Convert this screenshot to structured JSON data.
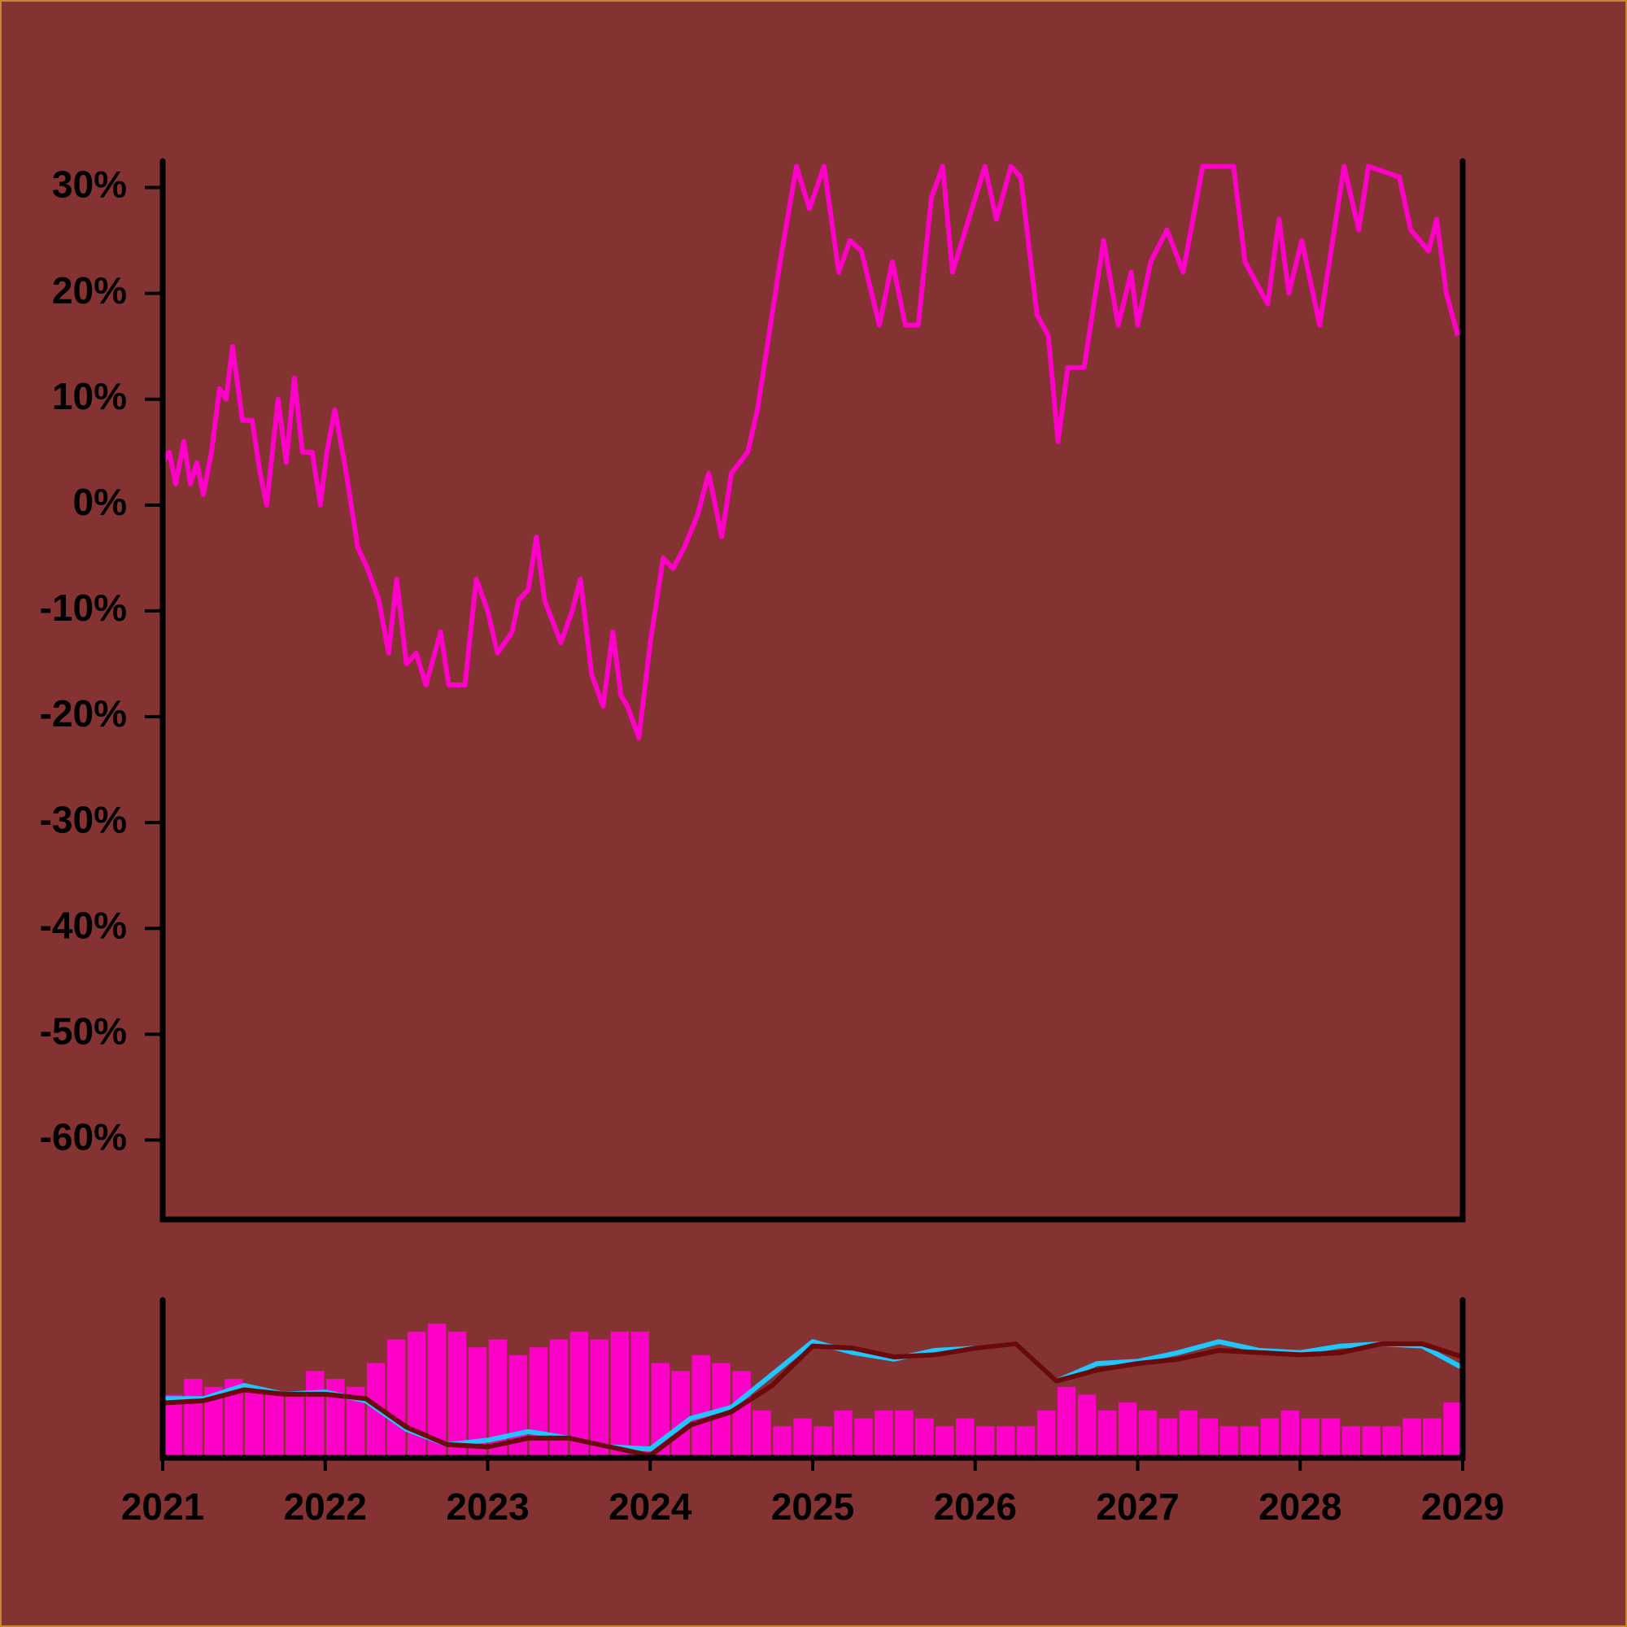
{
  "chart_data": [
    {
      "type": "line",
      "x": [
        2021.0,
        2021.04,
        2021.08,
        2021.13,
        2021.17,
        2021.21,
        2021.25,
        2021.3,
        2021.35,
        2021.39,
        2021.43,
        2021.49,
        2021.55,
        2021.6,
        2021.64,
        2021.71,
        2021.76,
        2021.81,
        2021.86,
        2021.92,
        2021.97,
        2022.01,
        2022.06,
        2022.13,
        2022.2,
        2022.26,
        2022.33,
        2022.39,
        2022.44,
        2022.5,
        2022.56,
        2022.62,
        2022.71,
        2022.76,
        2022.86,
        2022.93,
        2023.0,
        2023.06,
        2023.15,
        2023.19,
        2023.25,
        2023.3,
        2023.35,
        2023.45,
        2023.52,
        2023.57,
        2023.64,
        2023.71,
        2023.77,
        2023.82,
        2023.86,
        2023.93,
        2024.0,
        2024.08,
        2024.14,
        2024.21,
        2024.29,
        2024.36,
        2024.44,
        2024.5,
        2024.6,
        2024.66,
        2024.72,
        2024.8,
        2024.9,
        2024.98,
        2025.07,
        2025.16,
        2025.23,
        2025.3,
        2025.41,
        2025.49,
        2025.57,
        2025.65,
        2025.73,
        2025.8,
        2025.86,
        2025.94,
        2026.06,
        2026.13,
        2026.22,
        2026.28,
        2026.38,
        2026.45,
        2026.51,
        2026.57,
        2026.67,
        2026.79,
        2026.88,
        2026.96,
        2027.0,
        2027.08,
        2027.18,
        2027.28,
        2027.4,
        2027.59,
        2027.66,
        2027.8,
        2027.87,
        2027.93,
        2028.01,
        2028.12,
        2028.23,
        2028.27,
        2028.36,
        2028.42,
        2028.61,
        2028.68,
        2028.79,
        2028.84,
        2028.9,
        2028.97
      ],
      "values": [
        4,
        5,
        2,
        6,
        2,
        4,
        1,
        5,
        11,
        10,
        15,
        8,
        8,
        3,
        0,
        10,
        4,
        12,
        5,
        5,
        0,
        5,
        9,
        3,
        -4,
        -6,
        -9,
        -14,
        -7,
        -15,
        -14,
        -17,
        -12,
        -17,
        -17,
        -7,
        -10,
        -14,
        -12,
        -9,
        -8,
        -3,
        -9,
        -13,
        -10,
        -7,
        -16,
        -19,
        -12,
        -18,
        -19,
        -22,
        -13,
        -5,
        -6,
        -4,
        -1,
        3,
        -3,
        3,
        5,
        9,
        15,
        23,
        32,
        28,
        32,
        22,
        25,
        24,
        17,
        23,
        17,
        17,
        29,
        32,
        22,
        26,
        32,
        27,
        32,
        31,
        18,
        16,
        6,
        13,
        13,
        25,
        17,
        22,
        17,
        23,
        26,
        22,
        32,
        32,
        23,
        19,
        27,
        20,
        25,
        17,
        28,
        32,
        26,
        32,
        31,
        26,
        24,
        27,
        20,
        16
      ],
      "color": "#ff00c8",
      "xlim": [
        2021,
        2029
      ],
      "ylim": [
        -67.5,
        32.5
      ],
      "yticks": [
        {
          "value": -60,
          "label": "-60%"
        },
        {
          "value": -50,
          "label": "-50%"
        },
        {
          "value": -40,
          "label": "-40%"
        },
        {
          "value": -30,
          "label": "-30%"
        },
        {
          "value": -20,
          "label": "-20%"
        },
        {
          "value": -10,
          "label": "-10%"
        },
        {
          "value": 0,
          "label": "0%"
        },
        {
          "value": 10,
          "label": "10%"
        },
        {
          "value": 20,
          "label": "20%"
        },
        {
          "value": 30,
          "label": "30%"
        }
      ]
    },
    {
      "type": "bar",
      "x": [
        2021.0625,
        2021.1875,
        2021.3125,
        2021.4375,
        2021.5625,
        2021.6875,
        2021.8125,
        2021.9375,
        2022.0625,
        2022.1875,
        2022.3125,
        2022.4375,
        2022.5625,
        2022.6875,
        2022.8125,
        2022.9375,
        2023.0625,
        2023.1875,
        2023.3125,
        2023.4375,
        2023.5625,
        2023.6875,
        2023.8125,
        2023.9375,
        2024.0625,
        2024.1875,
        2024.3125,
        2024.4375,
        2024.5625,
        2024.6875,
        2024.8125,
        2024.9375,
        2025.0625,
        2025.1875,
        2025.3125,
        2025.4375,
        2025.5625,
        2025.6875,
        2025.8125,
        2025.9375,
        2026.0625,
        2026.1875,
        2026.3125,
        2026.4375,
        2026.5625,
        2026.6875,
        2026.8125,
        2026.9375,
        2027.0625,
        2027.1875,
        2027.3125,
        2027.4375,
        2027.5625,
        2027.6875,
        2027.8125,
        2027.9375,
        2028.0625,
        2028.1875,
        2028.3125,
        2028.4375,
        2028.5625,
        2028.6875,
        2028.8125,
        2028.9375
      ],
      "values": [
        40,
        50,
        45,
        50,
        45,
        40,
        40,
        55,
        50,
        45,
        60,
        75,
        80,
        85,
        80,
        70,
        75,
        65,
        70,
        75,
        80,
        75,
        80,
        80,
        60,
        55,
        65,
        60,
        55,
        30,
        20,
        25,
        20,
        30,
        25,
        30,
        30,
        25,
        20,
        25,
        20,
        20,
        20,
        30,
        45,
        40,
        30,
        35,
        30,
        25,
        30,
        25,
        20,
        20,
        25,
        30,
        25,
        25,
        20,
        20,
        20,
        25,
        25,
        35
      ],
      "color": "#ff00c8",
      "xlim": [
        2021,
        2029
      ],
      "ylim": [
        0,
        100
      ],
      "xticks": [
        2021,
        2022,
        2023,
        2024,
        2025,
        2026,
        2027,
        2028,
        2029
      ],
      "y2lim": [
        -23,
        49
      ],
      "lines": [
        {
          "color": "#1ec8ff",
          "axis": "y2",
          "x": [
            2021,
            2021.25,
            2021.5,
            2021.75,
            2022,
            2022.25,
            2022.5,
            2022.75,
            2023,
            2023.25,
            2023.5,
            2023.75,
            2024,
            2024.25,
            2024.5,
            2024.75,
            2025,
            2025.25,
            2025.5,
            2025.75,
            2026,
            2026.25,
            2026.5,
            2026.75,
            2027,
            2027.25,
            2027.5,
            2027.75,
            2028,
            2028.25,
            2028.5,
            2028.75,
            2029
          ],
          "values": [
            4,
            4,
            10,
            6,
            7,
            3,
            -10,
            -17,
            -15,
            -11,
            -14,
            -18,
            -19,
            -5,
            0,
            15,
            30,
            25,
            22,
            26,
            27,
            29,
            12,
            20,
            21,
            25,
            30,
            26,
            25,
            28,
            29,
            28,
            18
          ]
        },
        {
          "color": "#6b0a0a",
          "axis": "y2",
          "x": [
            2021,
            2021.25,
            2021.5,
            2021.75,
            2022,
            2022.25,
            2022.5,
            2022.75,
            2023,
            2023.25,
            2023.5,
            2023.75,
            2024,
            2024.25,
            2024.5,
            2024.75,
            2025,
            2025.25,
            2025.5,
            2025.75,
            2026,
            2026.25,
            2026.5,
            2026.75,
            2027,
            2027.25,
            2027.5,
            2027.75,
            2028,
            2028.25,
            2028.5,
            2028.75,
            2029
          ],
          "values": [
            2,
            3,
            8,
            6,
            6,
            4,
            -9,
            -17,
            -18,
            -14,
            -14,
            -18,
            -22,
            -8,
            -2,
            10,
            28,
            27,
            23,
            24,
            27,
            29,
            12,
            17,
            20,
            22,
            26,
            25,
            24,
            25,
            29,
            29,
            23
          ]
        }
      ]
    }
  ]
}
